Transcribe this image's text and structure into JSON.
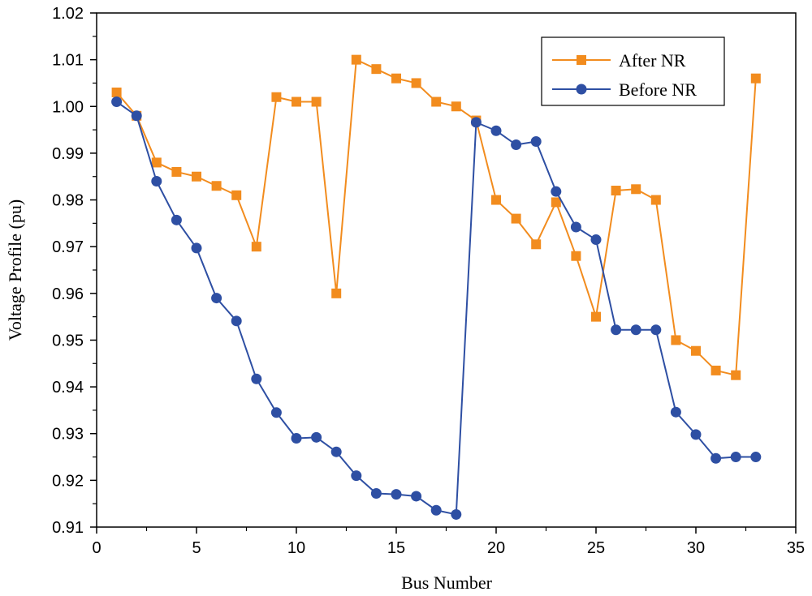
{
  "chart_data": {
    "type": "line",
    "title": "",
    "xlabel": "Bus Number",
    "ylabel": "Voltage Profile (pu)",
    "xlim": [
      0,
      35
    ],
    "ylim": [
      0.91,
      1.02
    ],
    "x_ticks": [
      "0",
      "5",
      "10",
      "15",
      "20",
      "25",
      "30",
      "35"
    ],
    "y_ticks": [
      "0.91",
      "0.92",
      "0.93",
      "0.94",
      "0.95",
      "0.96",
      "0.97",
      "0.98",
      "0.99",
      "1.00",
      "1.01",
      "1.02"
    ],
    "grid": false,
    "legend_position": "top-right",
    "x": [
      1,
      2,
      3,
      4,
      5,
      6,
      7,
      8,
      9,
      10,
      11,
      12,
      13,
      14,
      15,
      16,
      17,
      18,
      19,
      20,
      21,
      22,
      23,
      24,
      25,
      26,
      27,
      28,
      29,
      30,
      31,
      32,
      33
    ],
    "series": [
      {
        "name": "After NR",
        "color": "#F28C1E",
        "marker": "square",
        "values": [
          1.003,
          0.998,
          0.988,
          0.986,
          0.985,
          0.983,
          0.981,
          0.97,
          1.002,
          1.001,
          1.001,
          0.96,
          1.01,
          1.008,
          1.006,
          1.005,
          1.001,
          1.0,
          0.997,
          0.98,
          0.976,
          0.9705,
          0.9795,
          0.968,
          0.955,
          0.982,
          0.9823,
          0.98,
          0.95,
          0.9477,
          0.9435,
          0.9425,
          1.006
        ]
      },
      {
        "name": "Before NR",
        "color": "#2E4FA3",
        "marker": "circle",
        "values": [
          1.001,
          0.998,
          0.984,
          0.9757,
          0.9697,
          0.959,
          0.9541,
          0.9417,
          0.9345,
          0.929,
          0.9292,
          0.9261,
          0.921,
          0.9172,
          0.917,
          0.9166,
          0.9136,
          0.9127,
          0.9966,
          0.9948,
          0.9918,
          0.9925,
          0.9818,
          0.9742,
          0.9715,
          0.9522,
          0.9522,
          0.9522,
          0.9346,
          0.9298,
          0.9247,
          0.925,
          0.925
        ]
      }
    ]
  }
}
